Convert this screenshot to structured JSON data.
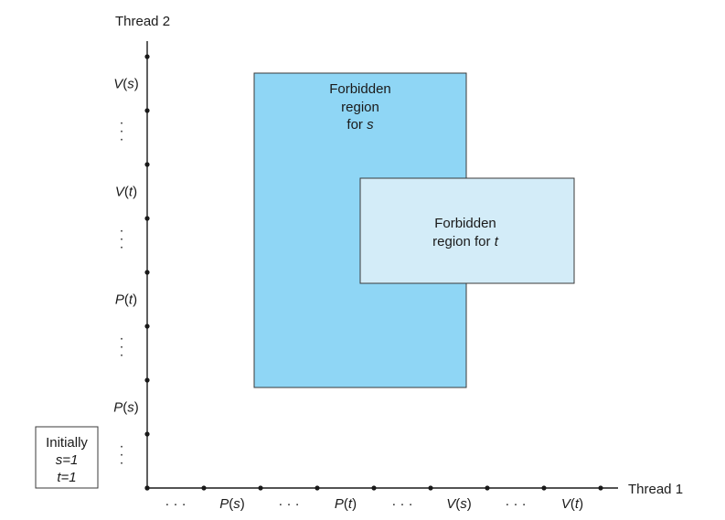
{
  "axes": {
    "x_title": "Thread 1",
    "y_title": "Thread 2"
  },
  "x_tick_labels": [
    "· · ·",
    "P(s)",
    "· · ·",
    "P(t)",
    "· · ·",
    "V(s)",
    "· · ·",
    "V(t)"
  ],
  "y_tick_labels": [
    "· · ·",
    "P(s)",
    "· · ·",
    "P(t)",
    "· · ·",
    "V(t)",
    "· · ·",
    "V(s)"
  ],
  "regions": {
    "s": {
      "line1": "Forbidden",
      "line2": "region",
      "line3_prefix": "for ",
      "line3_var": "s",
      "fill": "#8fd6f5"
    },
    "t": {
      "line1": "Forbidden",
      "line2_prefix": "region for ",
      "line2_var": "t",
      "fill": "#d3ecf8"
    }
  },
  "initially": {
    "title": "Initially",
    "s_line": "s=1",
    "t_line": "t=1"
  }
}
